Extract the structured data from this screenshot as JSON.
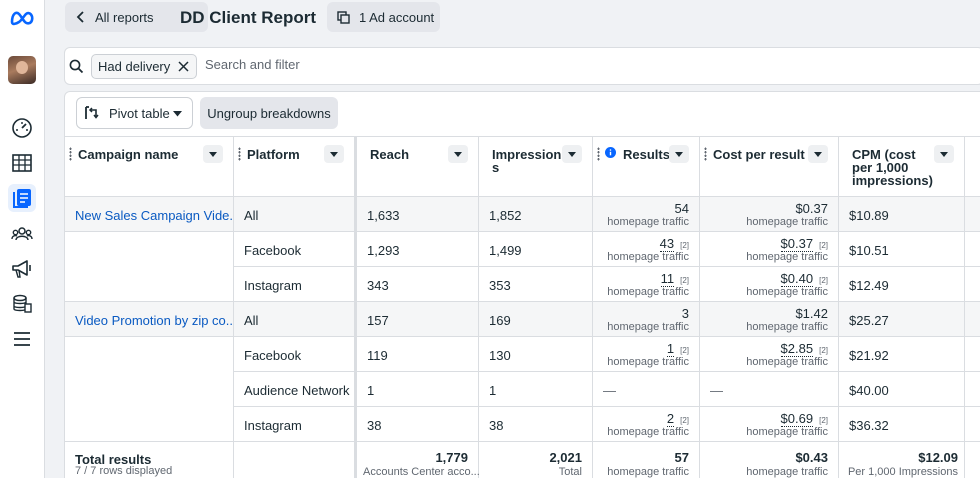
{
  "topbar": {
    "back_label": "All reports",
    "title": "DD Client Report",
    "ad_account_label": "1 Ad account"
  },
  "filter": {
    "chip_label": "Had delivery",
    "placeholder": "Search and filter"
  },
  "toolbar": {
    "pivot_label": "Pivot table",
    "ungroup_label": "Ungroup breakdowns"
  },
  "columns": {
    "campaign": "Campaign name",
    "platform": "Platform",
    "reach": "Reach",
    "impressions_1": "Impression",
    "impressions_2": "s",
    "results": "Results",
    "cpr": "Cost per result",
    "cpm_1": "CPM (cost",
    "cpm_2": "per 1,000",
    "cpm_3": "impressions)"
  },
  "rows": [
    {
      "campaign": "New Sales Campaign Vide...",
      "platform": "All",
      "reach": "1,633",
      "impressions": "1,852",
      "results": "54",
      "results_sub": "homepage traffic",
      "results_fn": "",
      "cpr": "$0.37",
      "cpr_sub": "homepage traffic",
      "cpr_fn": "",
      "cpm": "$10.89"
    },
    {
      "campaign": "",
      "platform": "Facebook",
      "reach": "1,293",
      "impressions": "1,499",
      "results": "43",
      "results_sub": "homepage traffic",
      "results_fn": "[2]",
      "cpr": "$0.37",
      "cpr_sub": "homepage traffic",
      "cpr_fn": "[2]",
      "cpm": "$10.51"
    },
    {
      "campaign": "",
      "platform": "Instagram",
      "reach": "343",
      "impressions": "353",
      "results": "11",
      "results_sub": "homepage traffic",
      "results_fn": "[2]",
      "cpr": "$0.40",
      "cpr_sub": "homepage traffic",
      "cpr_fn": "[2]",
      "cpm": "$12.49"
    },
    {
      "campaign": "Video Promotion by zip co...",
      "platform": "All",
      "reach": "157",
      "impressions": "169",
      "results": "3",
      "results_sub": "homepage traffic",
      "results_fn": "",
      "cpr": "$1.42",
      "cpr_sub": "homepage traffic",
      "cpr_fn": "",
      "cpm": "$25.27"
    },
    {
      "campaign": "",
      "platform": "Facebook",
      "reach": "119",
      "impressions": "130",
      "results": "1",
      "results_sub": "homepage traffic",
      "results_fn": "[2]",
      "cpr": "$2.85",
      "cpr_sub": "homepage traffic",
      "cpr_fn": "[2]",
      "cpm": "$21.92"
    },
    {
      "campaign": "",
      "platform": "Audience Network",
      "reach": "1",
      "impressions": "1",
      "results": "—",
      "results_sub": "",
      "results_fn": "",
      "cpr": "—",
      "cpr_sub": "",
      "cpr_fn": "",
      "cpm": "$40.00"
    },
    {
      "campaign": "",
      "platform": "Instagram",
      "reach": "38",
      "impressions": "38",
      "results": "2",
      "results_sub": "homepage traffic",
      "results_fn": "[2]",
      "cpr": "$0.69",
      "cpr_sub": "homepage traffic",
      "cpr_fn": "[2]",
      "cpm": "$36.32"
    }
  ],
  "totals": {
    "label": "Total results",
    "rows_displayed": "7 / 7 rows displayed",
    "reach": "1,779",
    "reach_sub": "Accounts Center acco...",
    "impressions": "2,021",
    "impressions_sub": "Total",
    "results": "57",
    "results_sub": "homepage traffic",
    "cpr": "$0.43",
    "cpr_sub": "homepage traffic",
    "cpm": "$12.09",
    "cpm_sub": "Per 1,000 Impressions"
  },
  "colors": {
    "link": "#0a5ac2",
    "active_nav": "#0866ff",
    "meta_logo": "#0866ff"
  },
  "icons": [
    "meta-logo-icon",
    "dashboard-icon",
    "table-icon",
    "reports-icon",
    "audience-icon",
    "megaphone-icon",
    "billing-icon",
    "menu-icon",
    "search-icon",
    "close-icon",
    "pivot-table-icon",
    "caret-down-icon",
    "info-icon"
  ]
}
